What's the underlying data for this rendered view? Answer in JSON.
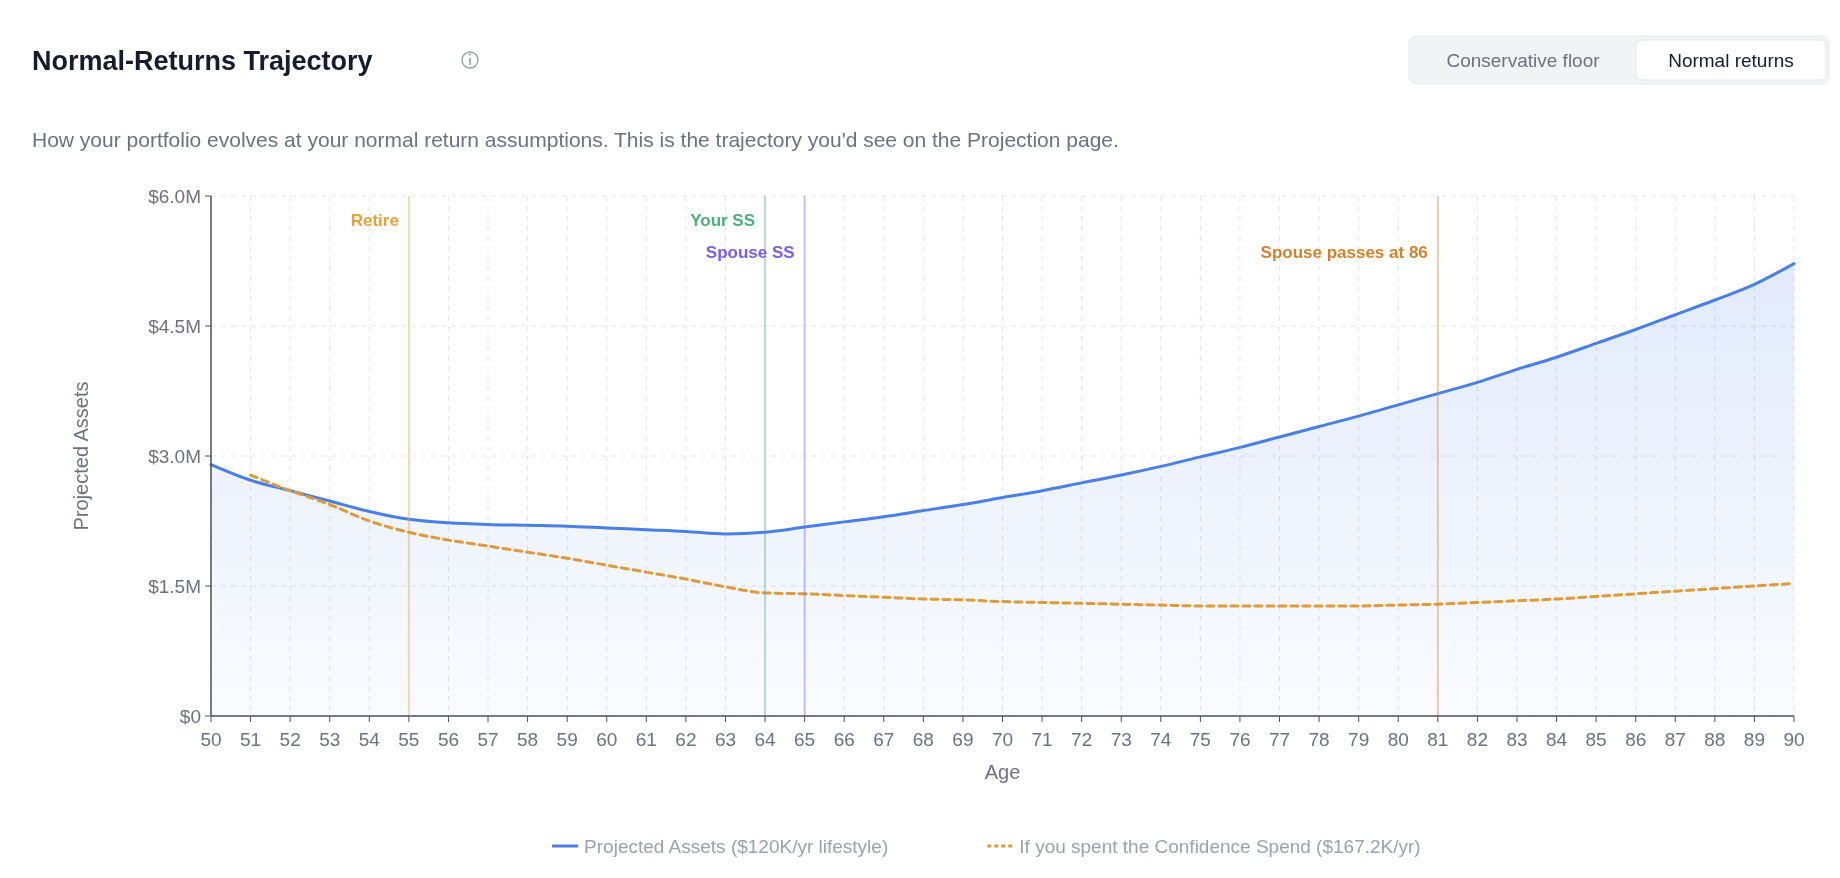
{
  "chart_data": {
    "type": "area",
    "title": "Normal-Returns Trajectory",
    "subtitle": "How your portfolio evolves at your normal return assumptions. This is the trajectory you'd see on the Projection page.",
    "xlabel": "Age",
    "ylabel": "Projected Assets",
    "annotations": [
      "Conservative floor",
      "Normal returns"
    ],
    "x": [
      50,
      51,
      52,
      53,
      54,
      55,
      56,
      57,
      58,
      59,
      60,
      61,
      62,
      63,
      64,
      65,
      66,
      67,
      68,
      69,
      70,
      71,
      72,
      73,
      74,
      75,
      76,
      77,
      78,
      79,
      80,
      81,
      82,
      83,
      84,
      85,
      86,
      87,
      88,
      89,
      90
    ],
    "xlim": [
      50,
      90
    ],
    "xticks": [
      50,
      51,
      52,
      53,
      54,
      55,
      56,
      57,
      58,
      59,
      60,
      61,
      62,
      63,
      64,
      65,
      66,
      67,
      68,
      69,
      70,
      71,
      72,
      73,
      74,
      75,
      76,
      77,
      78,
      79,
      80,
      81,
      82,
      83,
      84,
      85,
      86,
      87,
      88,
      89,
      90
    ],
    "ylim": [
      0,
      6
    ],
    "yticks": [
      {
        "value": 0,
        "label": "$0"
      },
      {
        "value": 1.5,
        "label": "$1.5M"
      },
      {
        "value": 3,
        "label": "$3.0M"
      },
      {
        "value": 4.5,
        "label": "$4.5M"
      },
      {
        "value": 6,
        "label": "$6.0M"
      }
    ],
    "series": [
      {
        "name": "Projected Assets ($120K/yr lifestyle)",
        "color": "#4a7fe8",
        "line_style": "solid",
        "values": [
          2.9,
          2.72,
          2.6,
          2.48,
          2.36,
          2.27,
          2.23,
          2.21,
          2.2,
          2.19,
          2.17,
          2.15,
          2.13,
          2.1,
          2.12,
          2.18,
          2.24,
          2.3,
          2.37,
          2.44,
          2.52,
          2.6,
          2.69,
          2.78,
          2.88,
          2.99,
          3.1,
          3.22,
          3.34,
          3.46,
          3.59,
          3.72,
          3.85,
          4.0,
          4.14,
          4.3,
          4.46,
          4.63,
          4.8,
          4.98,
          5.22
        ]
      },
      {
        "name": "If you spent the Confidence Spend ($167.2K/yr)",
        "type": "line",
        "color": "#e09a3a",
        "line_style": "dashed",
        "x": [
          51,
          52,
          53,
          54,
          55,
          56,
          57,
          58,
          59,
          60,
          61,
          62,
          63,
          64,
          65,
          66,
          67,
          68,
          69,
          70,
          71,
          72,
          73,
          74,
          75,
          76,
          77,
          78,
          79,
          80,
          81,
          82,
          83,
          84,
          85,
          86,
          87,
          88,
          89,
          90
        ],
        "values": [
          2.78,
          2.6,
          2.44,
          2.25,
          2.12,
          2.03,
          1.96,
          1.89,
          1.82,
          1.74,
          1.66,
          1.58,
          1.49,
          1.42,
          1.41,
          1.39,
          1.37,
          1.35,
          1.34,
          1.32,
          1.31,
          1.3,
          1.29,
          1.28,
          1.27,
          1.27,
          1.27,
          1.27,
          1.27,
          1.28,
          1.29,
          1.31,
          1.33,
          1.35,
          1.38,
          1.41,
          1.44,
          1.47,
          1.5,
          1.53
        ]
      }
    ],
    "ref_lines": [
      {
        "axis": "x",
        "value": 55,
        "label": "Retire",
        "color": "#e8a23a"
      },
      {
        "axis": "x",
        "value": 64,
        "label": "Your SS",
        "color": "#4caf7d"
      },
      {
        "axis": "x",
        "value": 65,
        "label": "Spouse SS",
        "color": "#7b5cf0"
      },
      {
        "axis": "x",
        "value": 81,
        "label": "Spouse passes at 86",
        "color": "#d4822a"
      }
    ],
    "grid": true,
    "legend": "bottom",
    "marker": "none"
  }
}
